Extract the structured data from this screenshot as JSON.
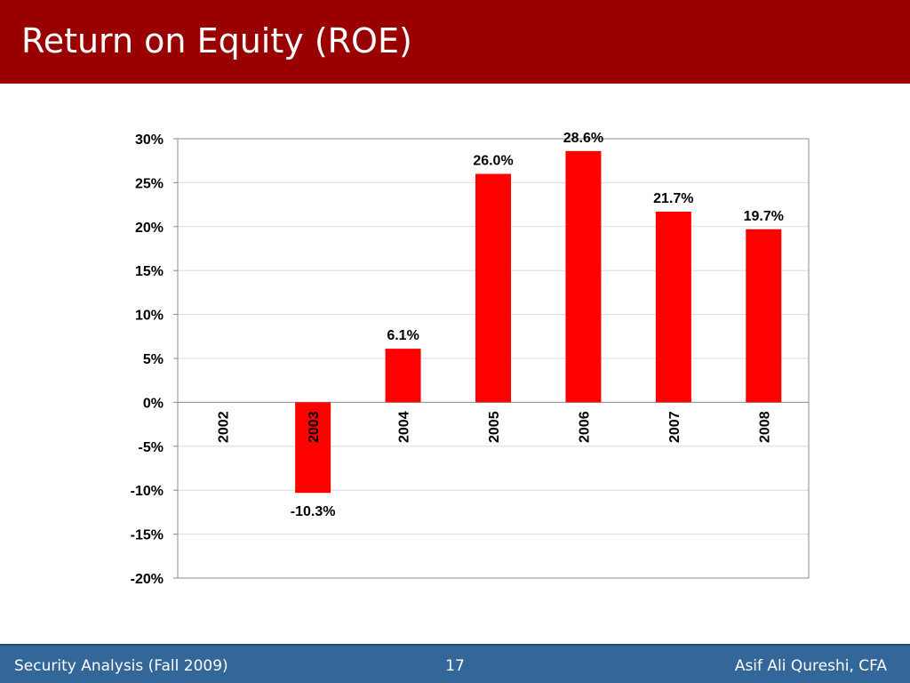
{
  "slide": {
    "title": "Return on Equity (ROE)",
    "footer_left": "Security Analysis (Fall 2009)",
    "page_number": "17",
    "footer_right": "Asif Ali Qureshi, CFA"
  },
  "colors": {
    "title_bar": "#990000",
    "footer_bar": "#336699",
    "bar_fill": "#ff0000"
  },
  "chart_data": {
    "type": "bar",
    "title": "",
    "xlabel": "",
    "ylabel": "",
    "categories": [
      "2002",
      "2003",
      "2004",
      "2005",
      "2006",
      "2007",
      "2008"
    ],
    "values": [
      null,
      -10.3,
      6.1,
      26.0,
      28.6,
      21.7,
      19.7
    ],
    "data_labels": [
      "",
      "-10.3%",
      "6.1%",
      "26.0%",
      "28.6%",
      "21.7%",
      "19.7%"
    ],
    "y_ticks": [
      30,
      25,
      20,
      15,
      10,
      5,
      0,
      -5,
      -10,
      -15,
      -20
    ],
    "y_tick_labels": [
      "30%",
      "25%",
      "20%",
      "15%",
      "10%",
      "5%",
      "0%",
      "-5%",
      "-10%",
      "-15%",
      "-20%"
    ],
    "ylim": [
      -20,
      30
    ],
    "grid": true,
    "legend": "none"
  }
}
